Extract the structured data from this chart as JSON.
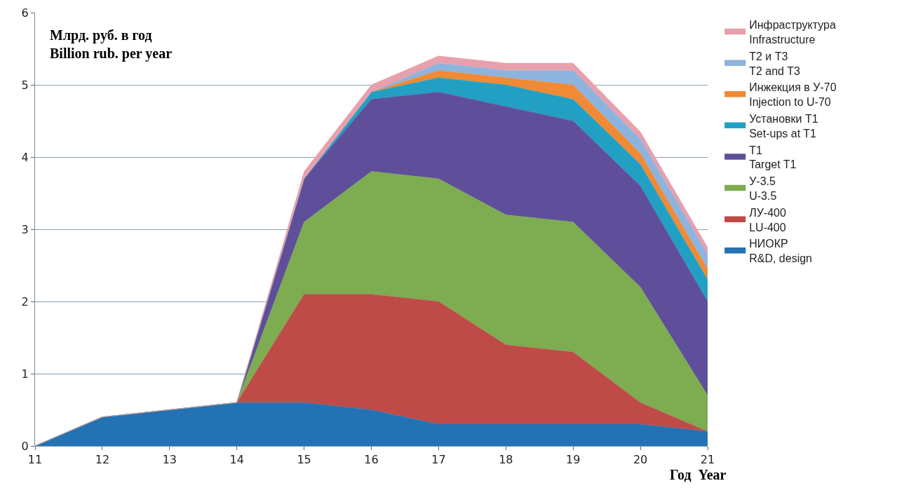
{
  "chart_data": {
    "type": "area",
    "stacked": true,
    "ylabel": "Млрд. руб. в год\nBillion rub. per year",
    "xlabel": "Год  Year",
    "x": [
      11,
      12,
      13,
      14,
      15,
      16,
      17,
      18,
      19,
      20,
      21
    ],
    "series": [
      {
        "name": "НИОКР\nR&D, design",
        "color": "#2372b4",
        "values": [
          0,
          0.4,
          0.5,
          0.6,
          0.6,
          0.5,
          0.3,
          0.3,
          0.3,
          0.3,
          0.2
        ]
      },
      {
        "name": "ЛУ-400\nLU-400",
        "color": "#be4b48",
        "values": [
          0,
          0,
          0,
          0,
          1.5,
          1.6,
          1.7,
          1.1,
          1.0,
          0.3,
          0
        ]
      },
      {
        "name": "У-3.5\nU-3.5",
        "color": "#7eac50",
        "values": [
          0,
          0,
          0,
          0,
          1.0,
          1.7,
          1.7,
          1.8,
          1.8,
          1.6,
          0.5
        ]
      },
      {
        "name": "Т1\nTarget T1",
        "color": "#5f4f9a",
        "values": [
          0,
          0,
          0,
          0,
          0.6,
          1.0,
          1.2,
          1.5,
          1.4,
          1.4,
          1.3
        ]
      },
      {
        "name": "Установки Т1\nSet-ups at T1",
        "color": "#22a0c4",
        "values": [
          0,
          0,
          0,
          0,
          0,
          0.1,
          0.2,
          0.3,
          0.3,
          0.3,
          0.3
        ]
      },
      {
        "name": "Инжекция в У-70\nInjection to U-70",
        "color": "#f08a35",
        "values": [
          0,
          0,
          0,
          0,
          0,
          0,
          0.1,
          0.1,
          0.2,
          0.15,
          0.15
        ]
      },
      {
        "name": "Т2 и Т3\nT2 and T3",
        "color": "#8db4de",
        "values": [
          0,
          0,
          0,
          0,
          0,
          0,
          0.1,
          0.1,
          0.2,
          0.2,
          0.2
        ]
      },
      {
        "name": "Инфраструктура\nInfrastructure",
        "color": "#e8a0ac",
        "values": [
          0,
          0,
          0,
          0,
          0.1,
          0.1,
          0.1,
          0.1,
          0.1,
          0.1,
          0.1
        ]
      }
    ],
    "xlim": [
      11,
      21
    ],
    "xticks": [
      11,
      12,
      13,
      14,
      15,
      16,
      17,
      18,
      19,
      20,
      21
    ],
    "ylim": [
      0,
      6
    ],
    "yticks": [
      0,
      1,
      2,
      3,
      4,
      5,
      6
    ],
    "grid": "y",
    "legend": "right"
  }
}
